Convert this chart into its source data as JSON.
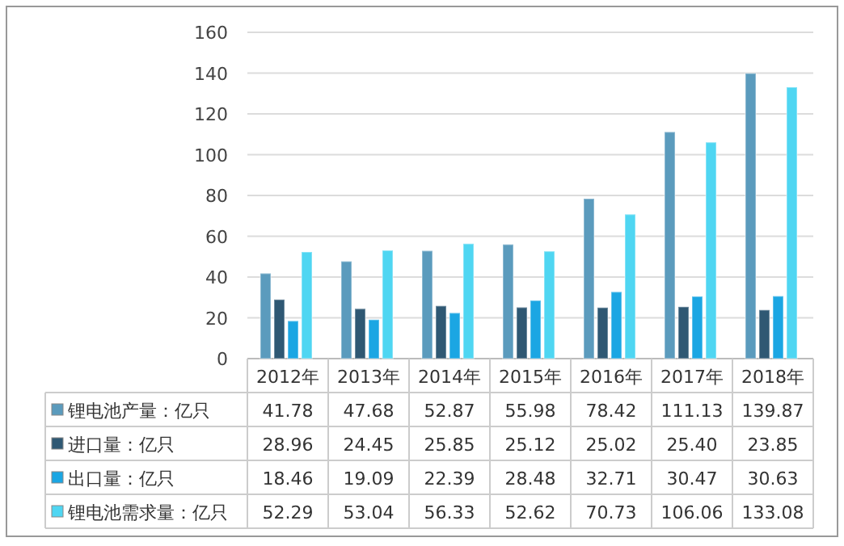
{
  "chart_data": {
    "type": "bar",
    "categories": [
      "2012年",
      "2013年",
      "2014年",
      "2015年",
      "2016年",
      "2017年",
      "2018年"
    ],
    "series": [
      {
        "name": "锂电池产量：亿只",
        "color": "#5b9bbd",
        "values": [
          41.78,
          47.68,
          52.87,
          55.98,
          78.42,
          111.13,
          139.87
        ],
        "value_labels": [
          "41.78",
          "47.68",
          "52.87",
          "55.98",
          "78.42",
          "111.13",
          "139.87"
        ]
      },
      {
        "name": "进口量：亿只",
        "color": "#2f5873",
        "values": [
          28.96,
          24.45,
          25.85,
          25.12,
          25.02,
          25.4,
          23.85
        ],
        "value_labels": [
          "28.96",
          "24.45",
          "25.85",
          "25.12",
          "25.02",
          "25.40",
          "23.85"
        ]
      },
      {
        "name": "出口量：亿只",
        "color": "#1ba6e3",
        "values": [
          18.46,
          19.09,
          22.39,
          28.48,
          32.71,
          30.47,
          30.63
        ],
        "value_labels": [
          "18.46",
          "19.09",
          "22.39",
          "28.48",
          "32.71",
          "30.47",
          "30.63"
        ]
      },
      {
        "name": "锂电池需求量：亿只",
        "color": "#4fd6f2",
        "values": [
          52.29,
          53.04,
          56.33,
          52.62,
          70.73,
          106.06,
          133.08
        ],
        "value_labels": [
          "52.29",
          "53.04",
          "56.33",
          "52.62",
          "70.73",
          "106.06",
          "133.08"
        ]
      }
    ],
    "ylim": [
      0,
      160
    ],
    "yticks": [
      0,
      20,
      40,
      60,
      80,
      100,
      120,
      140,
      160
    ],
    "grid": "y",
    "legend": "bottom left"
  }
}
